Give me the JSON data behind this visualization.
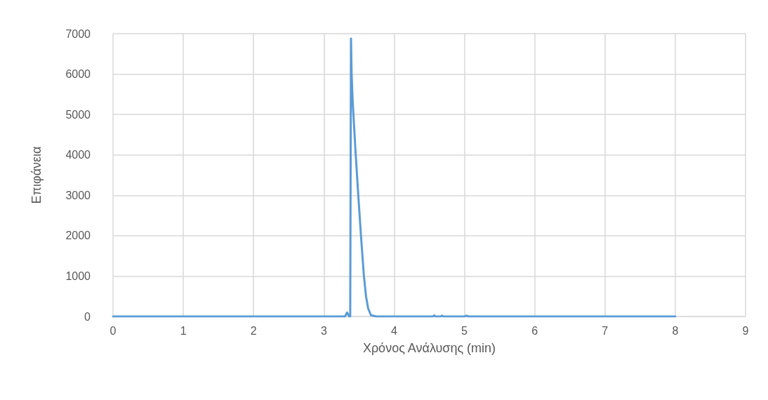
{
  "chart_data": {
    "type": "line",
    "xlabel": "Χρόνος Ανάλυσης (min)",
    "ylabel": "Επιφάνεια",
    "series": [
      {
        "color": "#5b9bd5",
        "x": [
          0,
          1,
          2,
          3,
          3.3,
          3.33,
          3.36,
          3.375,
          3.386,
          3.395,
          3.41,
          3.45,
          3.49,
          3.53,
          3.57,
          3.6,
          3.63,
          3.67,
          3.75,
          4,
          4.55,
          4.57,
          4.59,
          4.66,
          4.68,
          4.7,
          5,
          5.03,
          5.06,
          6,
          7,
          8
        ],
        "values": [
          0,
          0,
          0,
          0,
          0,
          100,
          0,
          0,
          6880,
          6000,
          5330,
          4100,
          2990,
          1950,
          1000,
          500,
          200,
          30,
          0,
          0,
          0,
          25,
          0,
          0,
          20,
          0,
          0,
          20,
          0,
          0,
          0,
          0
        ]
      }
    ],
    "xlim": [
      0,
      9
    ],
    "xticks": [
      0,
      1,
      2,
      3,
      4,
      5,
      6,
      7,
      8,
      9
    ],
    "ylim": [
      0,
      7000
    ],
    "yticks": [
      0,
      1000,
      2000,
      3000,
      4000,
      5000,
      6000,
      7000
    ],
    "grid": true,
    "marker": "none",
    "line_style": "solid"
  }
}
